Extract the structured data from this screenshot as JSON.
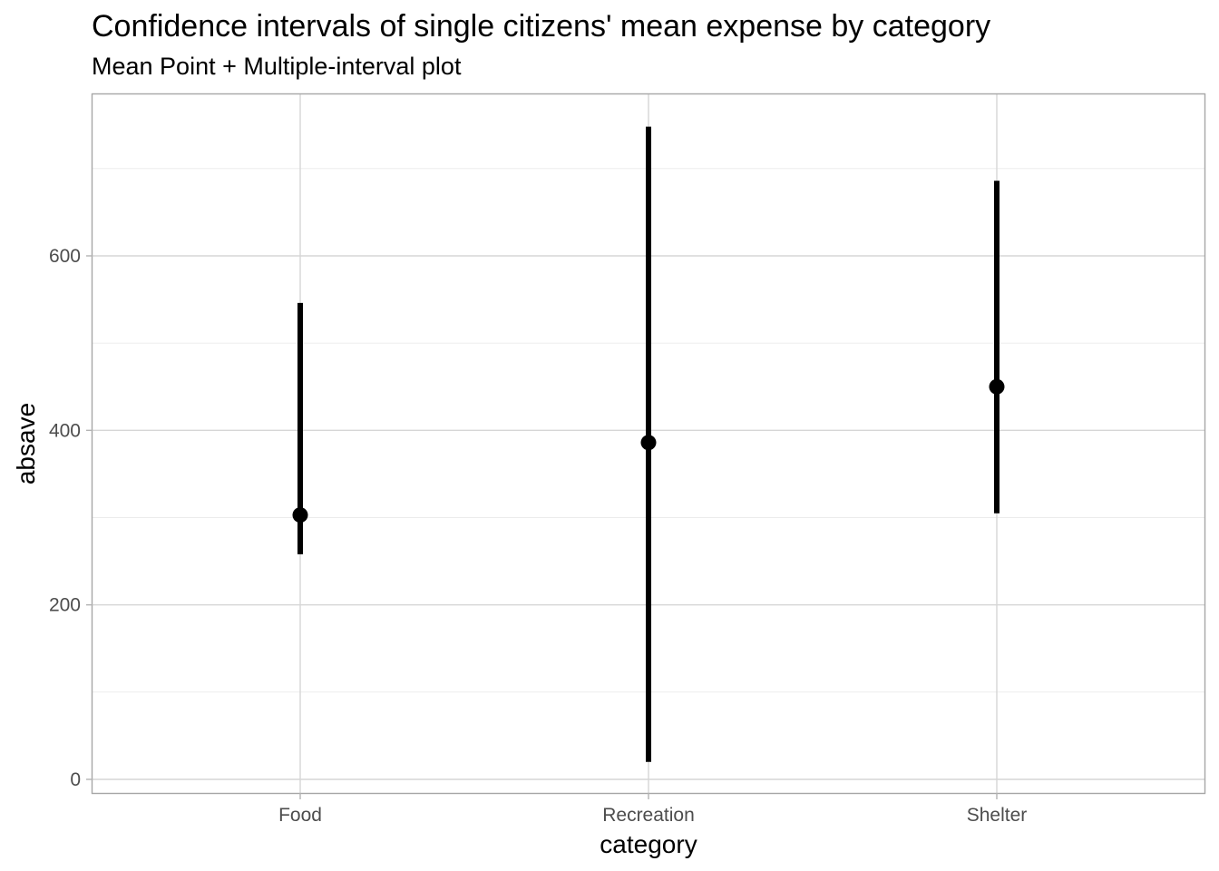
{
  "chart_data": {
    "type": "scatter",
    "title": "Confidence intervals of single citizens' mean expense by category",
    "subtitle": "Mean Point + Multiple-interval plot",
    "xlabel": "category",
    "ylabel": "absave",
    "categories": [
      "Food",
      "Recreation",
      "Shelter"
    ],
    "series": [
      {
        "mean": [
          303,
          386,
          450
        ],
        "lower": [
          258,
          20,
          305
        ],
        "upper": [
          546,
          748,
          686
        ]
      }
    ],
    "yticks": [
      0,
      200,
      400,
      600
    ],
    "ylim": [
      -15,
      768
    ],
    "grid": true,
    "legend": "none",
    "colors": {
      "marks": "#000000",
      "grid_major": "#d6d6d6",
      "grid_minor": "#ebebeb",
      "panel_border": "#a6a6a6",
      "tick_text": "#4d4d4d"
    }
  }
}
